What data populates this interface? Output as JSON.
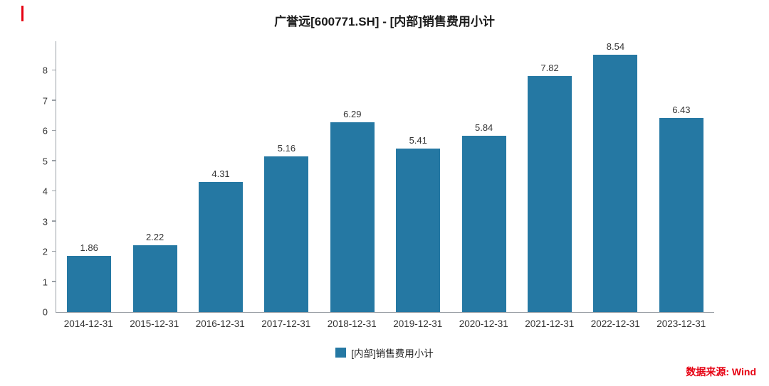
{
  "header": {
    "title": "广誉远[600771.SH] - [内部]销售费用小计"
  },
  "legend": {
    "label": "[内部]销售费用小计"
  },
  "source": {
    "label": "数据来源: Wind"
  },
  "colors": {
    "bar": "#2578a3",
    "source_text": "#e60012",
    "axis": "#9aa0a6"
  },
  "chart_data": {
    "type": "bar",
    "title": "广誉远[600771.SH] - [内部]销售费用小计",
    "categories": [
      "2014-12-31",
      "2015-12-31",
      "2016-12-31",
      "2017-12-31",
      "2018-12-31",
      "2019-12-31",
      "2020-12-31",
      "2021-12-31",
      "2022-12-31",
      "2023-12-31"
    ],
    "values": [
      1.86,
      2.22,
      4.31,
      5.16,
      6.29,
      5.41,
      5.84,
      7.82,
      8.54,
      6.43
    ],
    "xlabel": "",
    "ylabel": "",
    "ylim": [
      0,
      9
    ],
    "yticks": [
      0,
      1,
      2,
      3,
      4,
      5,
      6,
      7,
      8
    ],
    "grid": false,
    "value_labels": true,
    "legend": [
      "[内部]销售费用小计"
    ],
    "legend_position": "bottom"
  }
}
